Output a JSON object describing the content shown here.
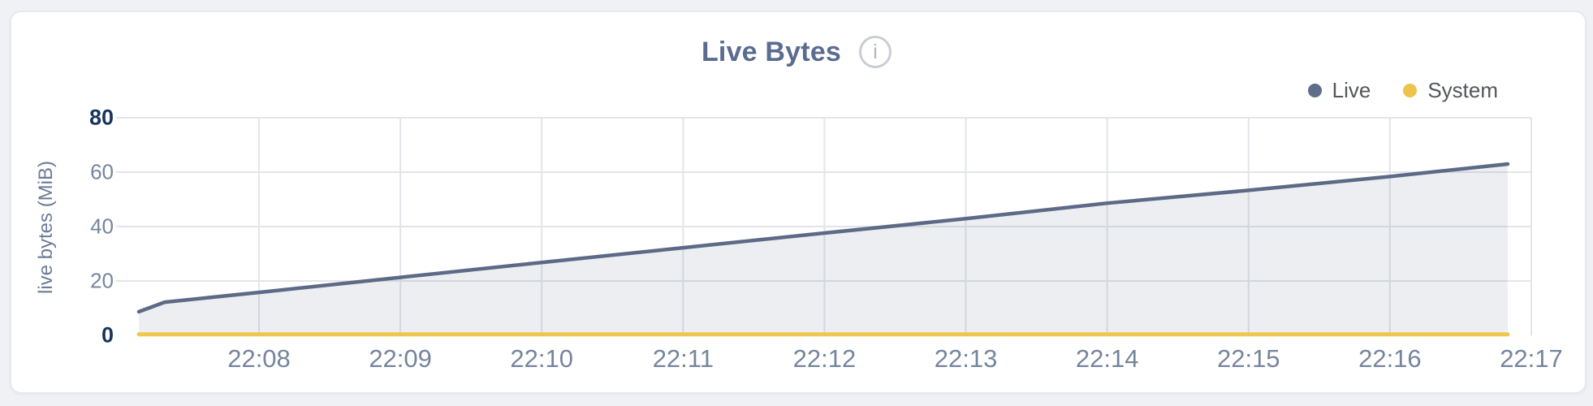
{
  "header": {
    "title": "Live Bytes",
    "info_icon": "i"
  },
  "legend": {
    "items": [
      {
        "label": "Live",
        "color": "#5f6c8a"
      },
      {
        "label": "System",
        "color": "#eec34c"
      }
    ]
  },
  "colors": {
    "page_background": "#f0f1f5",
    "card_background": "#ffffff",
    "title_text": "#5a6c90",
    "gridline": "#e3e5ea",
    "live_line": "#5d6a87",
    "live_fill": "rgba(99,112,140,0.12)",
    "system_line": "#eec84e",
    "ytick_text": "#76869e",
    "ytick_bold_text": "#17355d",
    "xtick_text": "#75859d"
  },
  "chart_data": {
    "type": "area",
    "title": "Live Bytes",
    "xlabel": "",
    "ylabel": "live bytes (MiB)",
    "ylim": [
      0,
      80
    ],
    "grid": true,
    "legend_position": "top-right",
    "yticks": [
      {
        "value": 0,
        "label": "0",
        "bold": true
      },
      {
        "value": 20,
        "label": "20",
        "bold": false
      },
      {
        "value": 40,
        "label": "40",
        "bold": false
      },
      {
        "value": 60,
        "label": "60",
        "bold": false
      },
      {
        "value": 80,
        "label": "80",
        "bold": true
      }
    ],
    "xticks": [
      "22:08",
      "22:09",
      "22:10",
      "22:11",
      "22:12",
      "22:13",
      "22:14",
      "22:15",
      "22:16",
      "22:17"
    ],
    "series": [
      {
        "name": "Live",
        "color": "#5d6a87",
        "fill": "rgba(99,112,140,0.12)",
        "points": [
          {
            "time": "22:07:09",
            "mib": 8.7
          },
          {
            "time": "22:07:20",
            "mib": 12.2
          },
          {
            "time": "22:08:00",
            "mib": 15.8
          },
          {
            "time": "22:09:00",
            "mib": 21.3
          },
          {
            "time": "22:10:00",
            "mib": 26.8
          },
          {
            "time": "22:11:00",
            "mib": 32.2
          },
          {
            "time": "22:12:00",
            "mib": 37.6
          },
          {
            "time": "22:13:00",
            "mib": 42.9
          },
          {
            "time": "22:14:00",
            "mib": 48.6
          },
          {
            "time": "22:15:00",
            "mib": 53.3
          },
          {
            "time": "22:16:00",
            "mib": 58.4
          },
          {
            "time": "22:16:50",
            "mib": 63.0
          }
        ]
      },
      {
        "name": "System",
        "color": "#eec84e",
        "fill": null,
        "points": [
          {
            "time": "22:07:09",
            "mib": 0.4
          },
          {
            "time": "22:12:00",
            "mib": 0.4
          },
          {
            "time": "22:16:50",
            "mib": 0.4
          }
        ]
      }
    ]
  }
}
